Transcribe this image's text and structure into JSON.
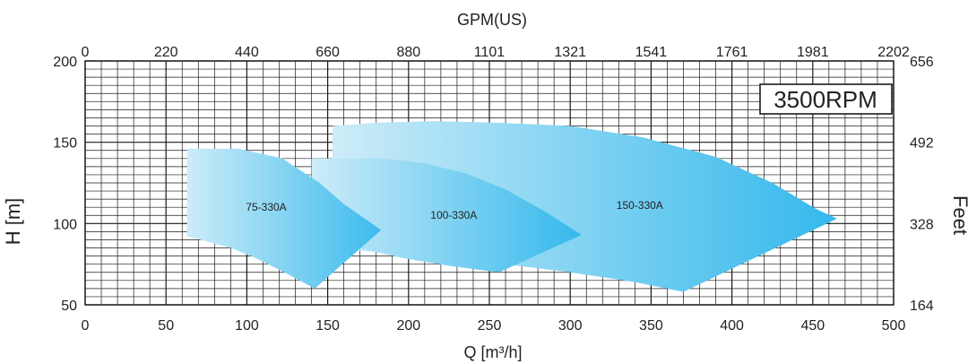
{
  "chart_data": {
    "type": "area",
    "top_axis": {
      "title": "GPM(US)",
      "tick_labels": [
        "0",
        "220",
        "440",
        "660",
        "880",
        "1101",
        "1321",
        "1541",
        "1761",
        "1981",
        "2202"
      ]
    },
    "x_axis": {
      "title": "Q [m³/h]",
      "range": [
        0,
        500
      ],
      "ticks": [
        0,
        50,
        100,
        150,
        200,
        250,
        300,
        350,
        400,
        450,
        500
      ]
    },
    "y_axis": {
      "title": "H [m]",
      "range": [
        50,
        200
      ],
      "ticks": [
        50,
        100,
        150,
        200
      ]
    },
    "right_axis": {
      "title": "Feet",
      "tick_labels": [
        "164",
        "328",
        "492",
        "656"
      ]
    },
    "grid": true,
    "speed_badge": "3500RPM",
    "colors": {
      "fill_light": "#cdecf8",
      "fill_dark": "#33b8ec",
      "grid": "#1a1a1a"
    },
    "series": [
      {
        "name": "75-330A",
        "label_at": [
          112,
          108
        ],
        "outline": [
          [
            63,
            146
          ],
          [
            95,
            146
          ],
          [
            122,
            140
          ],
          [
            145,
            125
          ],
          [
            160,
            112
          ],
          [
            173,
            103
          ],
          [
            183,
            96
          ],
          [
            142,
            60
          ],
          [
            125,
            69
          ],
          [
            105,
            79
          ],
          [
            90,
            85
          ],
          [
            75,
            89
          ],
          [
            63,
            92
          ]
        ]
      },
      {
        "name": "100-330A",
        "label_at": [
          228,
          103
        ],
        "outline": [
          [
            140,
            140
          ],
          [
            185,
            140
          ],
          [
            210,
            137
          ],
          [
            235,
            131
          ],
          [
            260,
            121
          ],
          [
            285,
            107
          ],
          [
            307,
            93
          ],
          [
            256,
            70
          ],
          [
            225,
            74
          ],
          [
            195,
            79
          ],
          [
            165,
            86
          ],
          [
            140,
            92
          ]
        ]
      },
      {
        "name": "150-330A",
        "label_at": [
          343,
          109
        ],
        "outline": [
          [
            153,
            160
          ],
          [
            180,
            162
          ],
          [
            215,
            163
          ],
          [
            255,
            162
          ],
          [
            300,
            160
          ],
          [
            345,
            153
          ],
          [
            390,
            141
          ],
          [
            425,
            125
          ],
          [
            452,
            109
          ],
          [
            465,
            103
          ],
          [
            370,
            58
          ],
          [
            340,
            64
          ],
          [
            300,
            70
          ],
          [
            260,
            75
          ],
          [
            220,
            79
          ],
          [
            185,
            82
          ],
          [
            153,
            85
          ]
        ]
      }
    ]
  }
}
